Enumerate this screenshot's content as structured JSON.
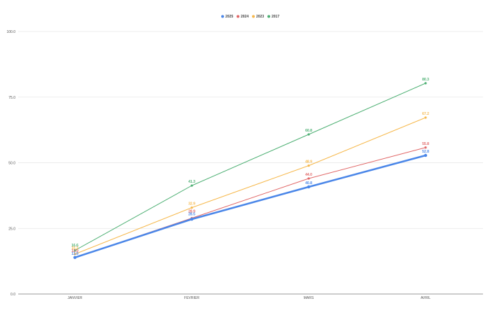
{
  "chart_data": {
    "type": "line",
    "categories": [
      "JANVIER",
      "FEVRIER",
      "MARS",
      "AVRIL"
    ],
    "ylim": [
      0,
      100
    ],
    "yticks": [
      "0.0",
      "25.0",
      "50.0",
      "75.0",
      "100.0"
    ],
    "grid": true,
    "legend_position": "top-center",
    "series": [
      {
        "name": "2025",
        "color": "#4a86e8",
        "values": [
          13.9,
          28.5,
          40.8,
          52.8
        ],
        "labels": [
          "13.9",
          "28.5",
          "40.8",
          "52.8"
        ]
      },
      {
        "name": "2024",
        "color": "#e06666",
        "values": [
          13.9,
          28.9,
          44.0,
          55.8
        ],
        "labels": [
          "13.9",
          "28.9",
          "44.0",
          "55.8"
        ]
      },
      {
        "name": "2023",
        "color": "#f6b84b",
        "values": [
          15.2,
          32.9,
          48.9,
          67.2
        ],
        "labels": [
          "15.2",
          "32.9",
          "48.9",
          "67.2"
        ]
      },
      {
        "name": "2017",
        "color": "#4caf72",
        "values": [
          16.6,
          41.3,
          60.8,
          80.3
        ],
        "labels": [
          "16.6",
          "41.3",
          "60.8",
          "80.3"
        ]
      }
    ]
  }
}
